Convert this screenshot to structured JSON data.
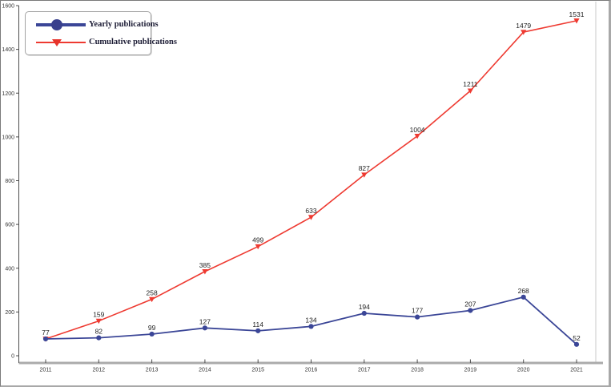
{
  "chart_data": {
    "type": "line",
    "title": "",
    "xlabel": "",
    "ylabel": "",
    "categories": [
      "2011",
      "2012",
      "2013",
      "2014",
      "2015",
      "2016",
      "2017",
      "2018",
      "2019",
      "2020",
      "2021"
    ],
    "series": [
      {
        "name": "Yearly publications",
        "color": "#3b4697",
        "marker": "circle",
        "values": [
          77,
          82,
          99,
          127,
          114,
          134,
          194,
          177,
          207,
          268,
          52
        ],
        "labels": [
          "77",
          "82",
          "99",
          "127",
          "114",
          "134",
          "194",
          "177",
          "207",
          "268",
          "52"
        ]
      },
      {
        "name": "Cumulative publications",
        "color": "#ee3a31",
        "marker": "triangle-down",
        "values": [
          77,
          159,
          258,
          385,
          499,
          633,
          827,
          1004,
          1211,
          1479,
          1531
        ],
        "labels": [
          "",
          "159",
          "258",
          "385",
          "499",
          "633",
          "827",
          "1004",
          "1211",
          "1479",
          "1531"
        ]
      }
    ],
    "ylim": [
      0,
      1600
    ],
    "yticks": [
      0,
      200,
      400,
      600,
      800,
      1000,
      1200,
      1400,
      1600
    ],
    "grid": false,
    "legend_position": "top-left",
    "data_labels": true,
    "colors": {
      "axis_spine": "#4d4d4d",
      "right_spine": "#c9c9c9",
      "baseline": "#ababab",
      "tick_label": "#333333",
      "data_label": "#1f1f1f"
    }
  }
}
